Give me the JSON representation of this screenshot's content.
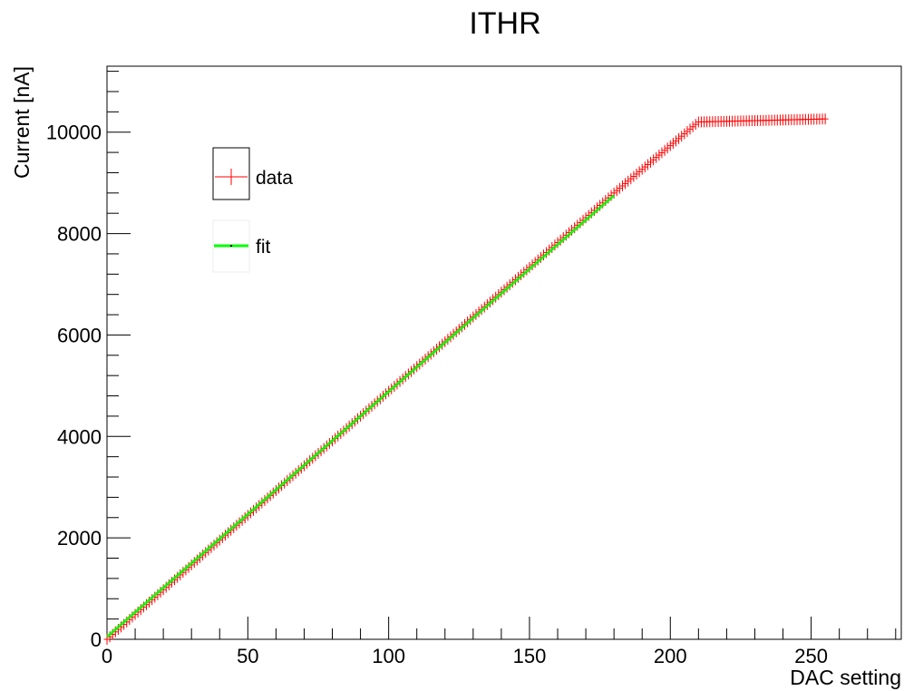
{
  "chart_data": {
    "type": "scatter",
    "title": "ITHR",
    "xlabel": "DAC setting",
    "ylabel": "Current [nA]",
    "xlim": [
      0,
      282
    ],
    "ylim": [
      0,
      11300
    ],
    "x_ticks": [
      0,
      50,
      100,
      150,
      200,
      250
    ],
    "y_ticks": [
      0,
      2000,
      4000,
      6000,
      8000,
      10000
    ],
    "x_tick_labels": [
      "0",
      "50",
      "100",
      "150",
      "200",
      "250"
    ],
    "y_tick_labels": [
      "0",
      "2000",
      "4000",
      "6000",
      "8000",
      "10000"
    ],
    "grid": false,
    "legend_position": "top-left",
    "series": [
      {
        "name": "data",
        "color": "#ff0000",
        "marker": "cross",
        "x_range": [
          0,
          255
        ],
        "piecewise_linear": [
          [
            0,
            0
          ],
          [
            180,
            8800
          ],
          [
            210,
            10200
          ],
          [
            255,
            10260
          ]
        ]
      },
      {
        "name": "fit",
        "color": "#00ff00",
        "style": "line",
        "x": [
          0,
          180
        ],
        "y": [
          50,
          8750
        ]
      }
    ],
    "legend": {
      "entries": [
        {
          "label": "data",
          "icon": "red-cross-marker-icon"
        },
        {
          "label": "fit",
          "icon": "green-line-icon"
        }
      ]
    }
  }
}
